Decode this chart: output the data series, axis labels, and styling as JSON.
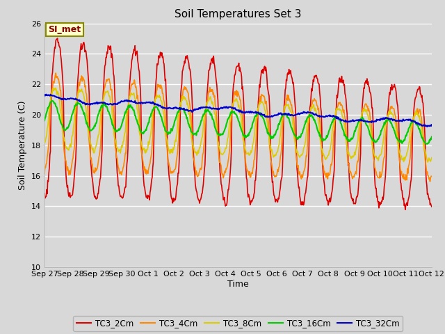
{
  "title": "Soil Temperatures Set 3",
  "xlabel": "Time",
  "ylabel": "Soil Temperature (C)",
  "ylim": [
    10,
    26
  ],
  "yticks": [
    10,
    12,
    14,
    16,
    18,
    20,
    22,
    24,
    26
  ],
  "background_color": "#d8d8d8",
  "plot_bg_color": "#d8d8d8",
  "series_colors": {
    "TC3_2Cm": "#dd0000",
    "TC3_4Cm": "#ff8800",
    "TC3_8Cm": "#ddcc00",
    "TC3_16Cm": "#00cc00",
    "TC3_32Cm": "#0000cc"
  },
  "annotation_text": "SI_met",
  "annotation_color": "#880000",
  "annotation_bg": "#ffffcc",
  "annotation_edge": "#888800",
  "x_tick_labels": [
    "Sep 27",
    "Sep 28",
    "Sep 29",
    "Sep 30",
    "Oct 1",
    "Oct 2",
    "Oct 3",
    "Oct 4",
    "Oct 5",
    "Oct 6",
    "Oct 7",
    "Oct 8",
    "Oct 9",
    "Oct 10",
    "Oct 11",
    "Oct 12"
  ],
  "figsize": [
    6.4,
    4.8
  ],
  "dpi": 100
}
